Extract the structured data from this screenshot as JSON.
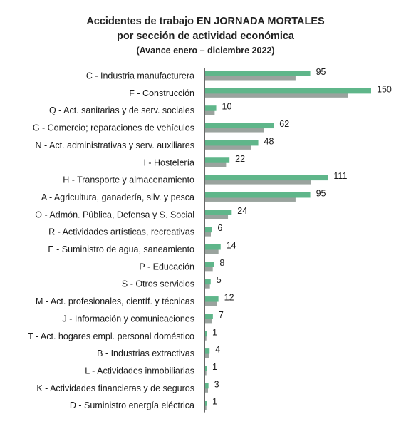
{
  "chart_data": {
    "type": "bar",
    "orientation": "horizontal",
    "title": "Accidentes de trabajo EN JORNADA MORTALES",
    "subtitle": "por sección de actividad económica",
    "note": "(Avance enero – diciembre 2022)",
    "categories": [
      "C - Industria manufacturera",
      "F - Construcción",
      "Q - Act. sanitarias y de serv. sociales",
      "G - Comercio; reparaciones de vehículos",
      "N - Act. administrativas y serv. auxiliares",
      "I - Hostelería",
      "H - Transporte y almacenamiento",
      "A - Agricultura, ganadería, silv. y pesca",
      "O - Admón. Pública, Defensa y S. Social",
      "R - Actividades artísticas, recreativas",
      "E - Suministro de agua, saneamiento",
      "P - Educación",
      "S - Otros servicios",
      "M - Act. profesionales, científ. y técnicas",
      "J - Información y comunicaciones",
      "T - Act. hogares empl. personal doméstico",
      "B - Industrias extractivas",
      "L - Actividades inmobiliarias",
      "K - Actividades financieras y de seguros",
      "D - Suministro energía eléctrica"
    ],
    "values": [
      95,
      150,
      10,
      62,
      48,
      22,
      111,
      95,
      24,
      6,
      14,
      8,
      5,
      12,
      7,
      1,
      4,
      1,
      3,
      1
    ],
    "xlim": [
      0,
      150
    ],
    "grid": false,
    "colors": {
      "bar": "#5fb68a",
      "bar_shadow": "#9aa39e",
      "axis": "#333333"
    }
  }
}
